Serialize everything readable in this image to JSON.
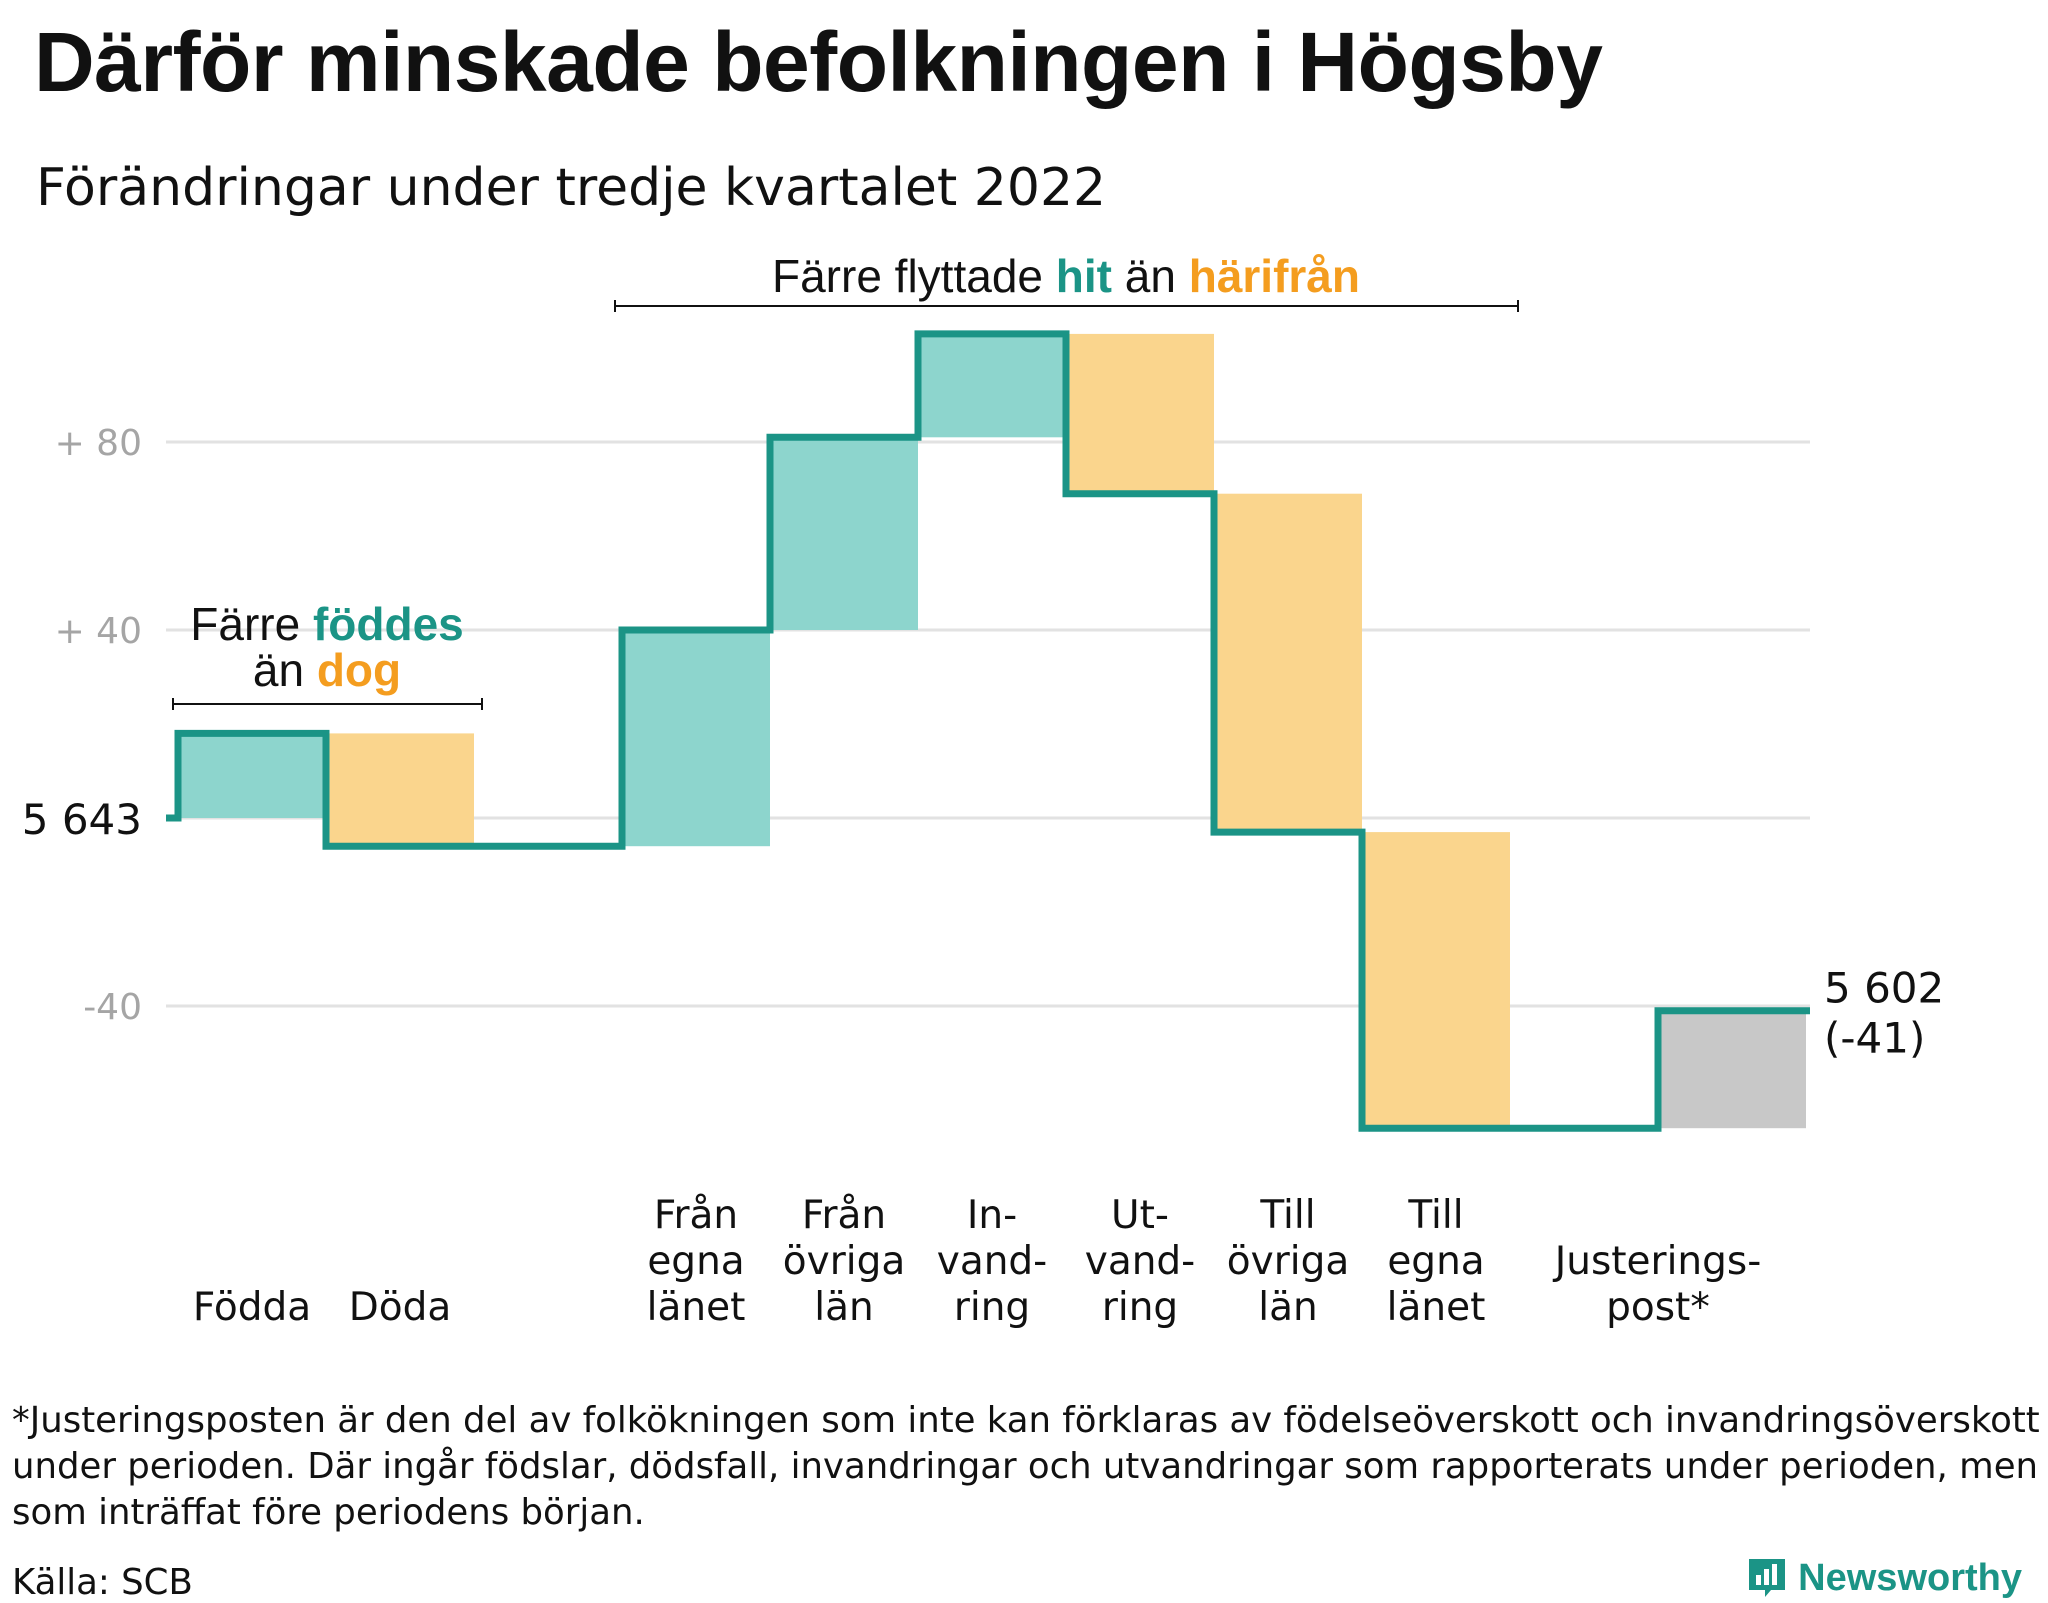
{
  "title": "Därför minskade befolkningen i Högsby",
  "subtitle": "Förändringar under tredje kvartalet 2022",
  "colors": {
    "inflow": "#8dd5cd",
    "outflow": "#fad58d",
    "adjustment": "#c8c8c8",
    "line": "#1b9486",
    "teal_text": "#1b9486",
    "orange_text": "#f49d1f",
    "grid": "#e2e2e2",
    "tick_text": "#a5a5a5"
  },
  "chart_data": {
    "type": "bar",
    "subtype": "waterfall",
    "start_value": 5643,
    "start_label": "5 643",
    "end_value": 5602,
    "end_label": "5 602",
    "end_change_label": "(-41)",
    "y_ticks": [
      {
        "value": 80,
        "label": "+ 80"
      },
      {
        "value": 40,
        "label": "+ 40"
      },
      {
        "value": -40,
        "label": "-40"
      }
    ],
    "ylim": [
      -75,
      130
    ],
    "grid": true,
    "steps": [
      {
        "label": [
          "Födda"
        ],
        "change": 18,
        "kind": "inflow"
      },
      {
        "label": [
          "Döda"
        ],
        "change": -24,
        "kind": "outflow"
      },
      {
        "label": [],
        "change": 0,
        "kind": "none"
      },
      {
        "label": [
          "Från",
          "egna",
          "länet"
        ],
        "change": 46,
        "kind": "inflow"
      },
      {
        "label": [
          "Från",
          "övriga",
          "län"
        ],
        "change": 41,
        "kind": "inflow"
      },
      {
        "label": [
          "In-",
          "vand-",
          "ring"
        ],
        "change": 22,
        "kind": "inflow"
      },
      {
        "label": [
          "Ut-",
          "vand-",
          "ring"
        ],
        "change": -34,
        "kind": "outflow"
      },
      {
        "label": [
          "Till",
          "övriga",
          "län"
        ],
        "change": -72,
        "kind": "outflow"
      },
      {
        "label": [
          "Till",
          "egna",
          "länet"
        ],
        "change": -63,
        "kind": "outflow"
      },
      {
        "label": [],
        "change": 0,
        "kind": "none"
      },
      {
        "label": [
          "Justerings-",
          "post*"
        ],
        "change": 25,
        "kind": "adjustment"
      }
    ],
    "annotations": [
      {
        "id": "births",
        "parts": [
          {
            "text": "Färre ",
            "color": "dark"
          },
          {
            "text": "föddes",
            "color": "teal"
          },
          {
            "text": "än ",
            "color": "dark",
            "newline": true
          },
          {
            "text": "dog",
            "color": "orange"
          }
        ]
      },
      {
        "id": "moves",
        "parts": [
          {
            "text": "Färre flyttade ",
            "color": "dark"
          },
          {
            "text": "hit",
            "color": "teal"
          },
          {
            "text": " än ",
            "color": "dark"
          },
          {
            "text": "härifrån",
            "color": "orange"
          }
        ]
      }
    ]
  },
  "footnote": "*Justeringsposten är den del av folkökningen som inte kan förklaras av födelseöverskott och invandringsöverskott under perioden. Där ingår födslar, dödsfall, invandringar och utvandringar som rapporterats under perioden, men som inträffat före periodens början.",
  "source": "Källa: SCB",
  "brand": "Newsworthy"
}
